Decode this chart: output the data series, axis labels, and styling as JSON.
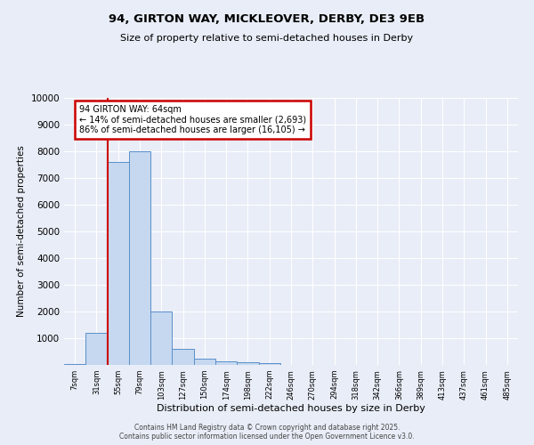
{
  "title_line1": "94, GIRTON WAY, MICKLEOVER, DERBY, DE3 9EB",
  "title_line2": "Size of property relative to semi-detached houses in Derby",
  "xlabel": "Distribution of semi-detached houses by size in Derby",
  "ylabel": "Number of semi-detached properties",
  "categories": [
    "7sqm",
    "31sqm",
    "55sqm",
    "79sqm",
    "103sqm",
    "127sqm",
    "150sqm",
    "174sqm",
    "198sqm",
    "222sqm",
    "246sqm",
    "270sqm",
    "294sqm",
    "318sqm",
    "342sqm",
    "366sqm",
    "389sqm",
    "413sqm",
    "437sqm",
    "461sqm",
    "485sqm"
  ],
  "values": [
    50,
    1200,
    7600,
    8000,
    2000,
    600,
    250,
    120,
    100,
    80,
    0,
    0,
    0,
    0,
    0,
    0,
    0,
    0,
    0,
    0,
    0
  ],
  "bar_color": "#c5d8f0",
  "bar_edge_color": "#5b8fc9",
  "line_color": "#cc0000",
  "red_line_x": 1.5,
  "annotation_text_line1": "94 GIRTON WAY: 64sqm",
  "annotation_text_line2": "← 14% of semi-detached houses are smaller (2,693)",
  "annotation_text_line3": "86% of semi-detached houses are larger (16,105) →",
  "annotation_box_color": "#ffffff",
  "annotation_box_edge": "#cc0000",
  "ylim": [
    0,
    10000
  ],
  "yticks": [
    0,
    1000,
    2000,
    3000,
    4000,
    5000,
    6000,
    7000,
    8000,
    9000,
    10000
  ],
  "background_color": "#e8edf7",
  "grid_color": "#ffffff",
  "footer_line1": "Contains HM Land Registry data © Crown copyright and database right 2025.",
  "footer_line2": "Contains public sector information licensed under the Open Government Licence v3.0."
}
